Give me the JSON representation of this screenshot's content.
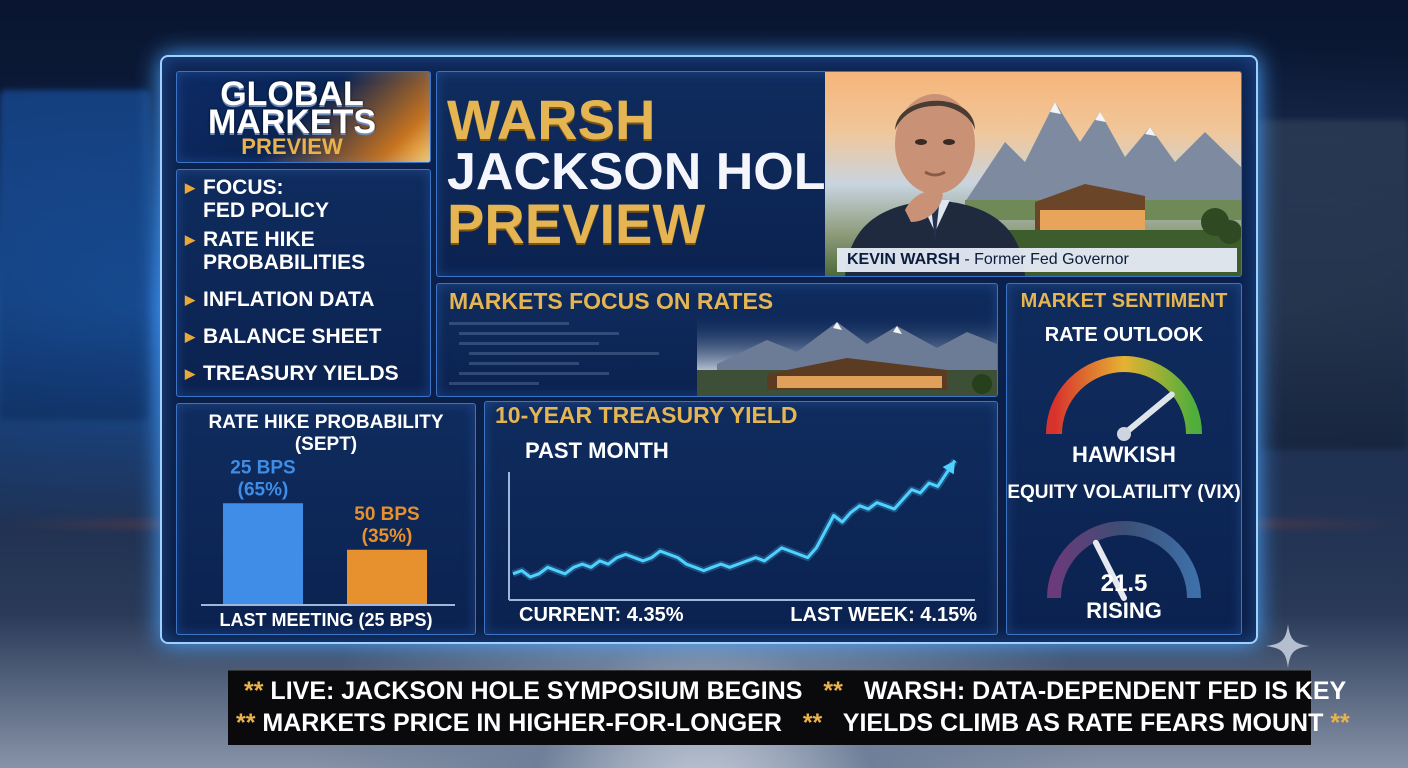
{
  "brand": {
    "line1": "GLOBAL",
    "line2": "MARKETS",
    "line3": "PREVIEW"
  },
  "focus_items": [
    {
      "lines": [
        "FOCUS:",
        "FED POLICY"
      ]
    },
    {
      "lines": [
        "RATE HIKE",
        "PROBABILITIES"
      ]
    },
    {
      "lines": [
        "INFLATION DATA"
      ]
    },
    {
      "lines": [
        "BALANCE SHEET"
      ]
    },
    {
      "lines": [
        "TREASURY YIELDS"
      ]
    }
  ],
  "headline": {
    "line1": "WARSH",
    "line2": "JACKSON HOLE",
    "line3": "PREVIEW",
    "caption_name": "KEVIN WARSH",
    "caption_role": " - Former Fed Governor"
  },
  "markets_focus": {
    "title": "MARKETS FOCUS ON RATES"
  },
  "sentiment": {
    "title": "MARKET SENTIMENT",
    "rate_outlook": {
      "label": "RATE OUTLOOK",
      "value": "HAWKISH",
      "needle_level": 0.78
    },
    "vix": {
      "label": "EQUITY VOLATILITY (VIX)",
      "value": "21.5",
      "trend": "RISING",
      "needle_level": 0.35
    }
  },
  "rate_hike": {
    "title": "RATE HIKE PROBABILITY (SEPT)",
    "footer": "LAST MEETING (25 BPS)",
    "chart_data": {
      "type": "bar",
      "categories": [
        "25 BPS",
        "50 BPS"
      ],
      "values": [
        65,
        35
      ],
      "labels": [
        "(65%)",
        "(35%)"
      ],
      "colors": [
        "#3f8de6",
        "#e6912e"
      ],
      "ylim": [
        0,
        100
      ],
      "title": "RATE HIKE PROBABILITY (SEPT)",
      "xlabel": "LAST MEETING (25 BPS)"
    }
  },
  "yield_chart": {
    "title": "10-YEAR TREASURY YIELD",
    "subtitle": "PAST MONTH",
    "current": "CURRENT: 4.35%",
    "last_week": "LAST WEEK: 4.15%",
    "chart_data": {
      "type": "line",
      "title": "10-YEAR TREASURY YIELD",
      "subtitle": "PAST MONTH",
      "values": [
        4.0,
        4.01,
        3.99,
        4.0,
        4.02,
        4.01,
        4.0,
        4.02,
        4.03,
        4.02,
        4.04,
        4.03,
        4.05,
        4.06,
        4.05,
        4.04,
        4.05,
        4.07,
        4.06,
        4.05,
        4.03,
        4.02,
        4.01,
        4.02,
        4.03,
        4.02,
        4.03,
        4.04,
        4.05,
        4.04,
        4.06,
        4.08,
        4.07,
        4.06,
        4.05,
        4.08,
        4.13,
        4.18,
        4.16,
        4.19,
        4.21,
        4.2,
        4.22,
        4.21,
        4.2,
        4.23,
        4.26,
        4.25,
        4.28,
        4.27,
        4.31,
        4.35
      ],
      "color": "#4fd2ff"
    }
  },
  "ticker": {
    "line1": [
      "LIVE: JACKSON HOLE SYMPOSIUM BEGINS",
      "WARSH: DATA-DEPENDENT FED IS KEY"
    ],
    "line2": [
      "MARKETS PRICE IN HIGHER-FOR-LONGER",
      "YIELDS CLIMB AS RATE FEARS MOUNT"
    ],
    "star_mark": "**"
  },
  "icons": {
    "focus_bullet": "triangle-right-icon",
    "sparkle": "sparkle-icon"
  },
  "colors": {
    "accent_gold": "#e4b552",
    "frame_glow": "#9fd1ff",
    "hawkish_needle": "#d9dde4"
  }
}
